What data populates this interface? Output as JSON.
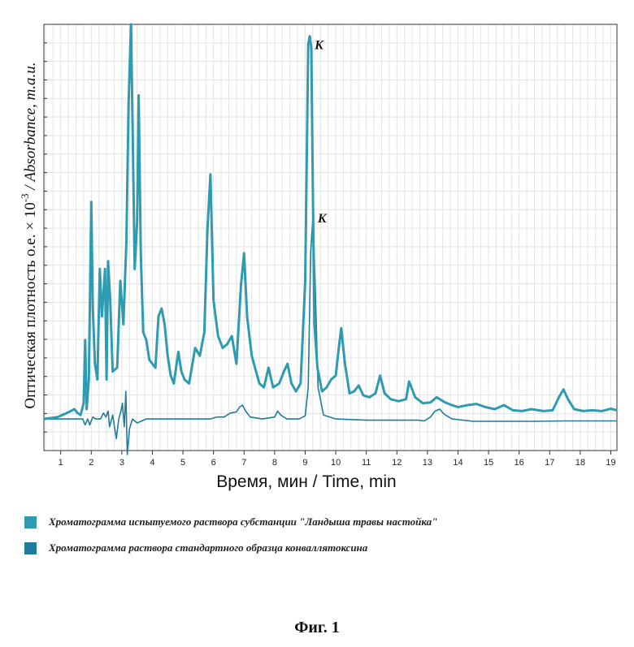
{
  "chart_data": {
    "type": "line",
    "xlabel": "Время, мин / Time, min",
    "ylabel_plain": "Оптическая плотность о.е. × 10",
    "ylabel_exp": "-3",
    "ylabel_italic": " / Absorbance, m.a.u.",
    "xlim": [
      0.45,
      19.2
    ],
    "ylim": [
      -8,
      100
    ],
    "x_ticks": [
      1,
      2,
      3,
      4,
      5,
      6,
      7,
      8,
      9,
      10,
      11,
      12,
      13,
      14,
      15,
      16,
      17,
      18,
      19
    ],
    "grid": true,
    "legend_position": "bottom",
    "series": [
      {
        "name": "Хроматограмма испытуемого раствора субстанции \"Ландыша травы настойка\"",
        "color": "#2f9bb0",
        "x": [
          0.45,
          0.9,
          1.2,
          1.45,
          1.55,
          1.65,
          1.75,
          1.8,
          1.85,
          1.92,
          2.0,
          2.05,
          2.12,
          2.2,
          2.28,
          2.35,
          2.45,
          2.5,
          2.55,
          2.62,
          2.7,
          2.85,
          2.95,
          3.05,
          3.15,
          3.22,
          3.3,
          3.35,
          3.42,
          3.5,
          3.55,
          3.62,
          3.7,
          3.8,
          3.9,
          4.0,
          4.1,
          4.2,
          4.3,
          4.4,
          4.5,
          4.6,
          4.7,
          4.85,
          4.95,
          5.05,
          5.2,
          5.4,
          5.55,
          5.7,
          5.8,
          5.9,
          6.0,
          6.15,
          6.3,
          6.45,
          6.6,
          6.75,
          6.9,
          7.0,
          7.1,
          7.25,
          7.5,
          7.65,
          7.8,
          7.95,
          8.15,
          8.3,
          8.42,
          8.55,
          8.7,
          8.85,
          9.0,
          9.1,
          9.15,
          9.2,
          9.25,
          9.3,
          9.4,
          9.55,
          9.7,
          9.85,
          10.0,
          10.1,
          10.18,
          10.3,
          10.45,
          10.6,
          10.75,
          10.9,
          11.1,
          11.3,
          11.45,
          11.6,
          11.8,
          12.05,
          12.3,
          12.4,
          12.6,
          12.85,
          13.1,
          13.3,
          13.55,
          13.8,
          14.0,
          14.3,
          14.6,
          14.9,
          15.2,
          15.5,
          15.8,
          16.1,
          16.4,
          16.8,
          17.1,
          17.3,
          17.45,
          17.6,
          17.8,
          18.1,
          18.4,
          18.7,
          19.0,
          19.2
        ],
        "y": [
          0,
          0.5,
          1.5,
          2.5,
          1.5,
          1.0,
          4.0,
          20.0,
          2.5,
          10.0,
          55.0,
          28.0,
          14.0,
          10.0,
          38.0,
          26.0,
          38.0,
          10.0,
          40.0,
          30.0,
          12.0,
          13.0,
          35.0,
          24.0,
          45.0,
          80.0,
          100.0,
          76.0,
          38.0,
          50.0,
          82.0,
          42.0,
          22.0,
          20.0,
          15.0,
          14.0,
          13.0,
          26.0,
          28.0,
          24.0,
          16.0,
          11.0,
          9.0,
          17.0,
          12.0,
          10.0,
          9.0,
          18.0,
          16.0,
          22.0,
          48.0,
          62.0,
          30.0,
          21.0,
          18.0,
          19.0,
          21.0,
          14.0,
          34.0,
          42.0,
          26.0,
          16.0,
          9.0,
          8.0,
          13.0,
          8.0,
          9.0,
          12.0,
          14.0,
          9.0,
          7.0,
          9.0,
          35.0,
          95.0,
          97.0,
          94.0,
          58.0,
          24.0,
          13.0,
          7.0,
          8.0,
          10.0,
          11.0,
          18.0,
          23.0,
          14.0,
          6.5,
          7.0,
          8.5,
          6.0,
          5.5,
          6.5,
          11.0,
          6.5,
          5.0,
          4.5,
          5.0,
          9.5,
          5.5,
          4.0,
          4.2,
          5.5,
          4.3,
          3.5,
          3.0,
          3.5,
          3.8,
          3.0,
          2.5,
          3.5,
          2.2,
          2.0,
          2.5,
          2.0,
          2.2,
          5.5,
          7.5,
          5.0,
          2.5,
          2.0,
          2.2,
          2.0,
          2.6,
          2.2
        ]
      },
      {
        "name": "Хроматограмма раствора стандартного образца конваллятоксина",
        "color": "#1e7d9a",
        "x": [
          0.45,
          1.0,
          1.35,
          1.45,
          1.6,
          1.72,
          1.8,
          1.88,
          1.95,
          2.05,
          2.15,
          2.3,
          2.4,
          2.48,
          2.55,
          2.6,
          2.7,
          2.82,
          2.9,
          2.97,
          3.02,
          3.08,
          3.13,
          3.18,
          3.25,
          3.35,
          3.5,
          3.8,
          4.5,
          5.5,
          5.9,
          6.1,
          6.35,
          6.55,
          6.75,
          6.85,
          6.95,
          7.05,
          7.2,
          7.6,
          8.0,
          8.1,
          8.2,
          8.4,
          8.8,
          9.0,
          9.1,
          9.18,
          9.25,
          9.32,
          9.42,
          9.6,
          10.0,
          11.0,
          12.0,
          12.7,
          12.9,
          13.1,
          13.25,
          13.4,
          13.55,
          13.8,
          14.5,
          15.5,
          16.5,
          17.5,
          18.5,
          19.2
        ],
        "y": [
          0,
          0,
          0,
          0,
          0,
          0,
          -1.5,
          0,
          -1.5,
          0.5,
          0,
          0,
          1.5,
          0.5,
          2.0,
          -2.0,
          1.0,
          -5.0,
          0,
          2.0,
          4.0,
          -2.0,
          7.0,
          -9.0,
          -2.5,
          0,
          -1.0,
          0,
          0,
          0,
          0,
          0.5,
          0.5,
          1.5,
          1.8,
          3.0,
          3.5,
          2.0,
          0.5,
          0,
          0.5,
          2.0,
          1.0,
          0,
          0,
          0.8,
          8.0,
          42.0,
          51.0,
          36.0,
          8.0,
          1.0,
          0,
          -0.3,
          -0.3,
          -0.3,
          -0.5,
          0.5,
          2.0,
          2.5,
          1.2,
          0,
          -0.6,
          -0.6,
          -0.6,
          -0.5,
          -0.5,
          -0.5
        ]
      }
    ],
    "annotations": [
      {
        "text": "K",
        "x": 9.15,
        "y": 97
      },
      {
        "text": "K",
        "x": 9.25,
        "y": 51
      }
    ]
  },
  "legend": {
    "items": [
      {
        "label": "Хроматограмма испытуемого раствора субстанции \"Ландыша травы настойка\"",
        "color": "#2f9bb0"
      },
      {
        "label": "Хроматограмма раствора стандартного образца конваллятоксина",
        "color": "#1e7d9a"
      }
    ]
  },
  "caption": "Фиг. 1"
}
